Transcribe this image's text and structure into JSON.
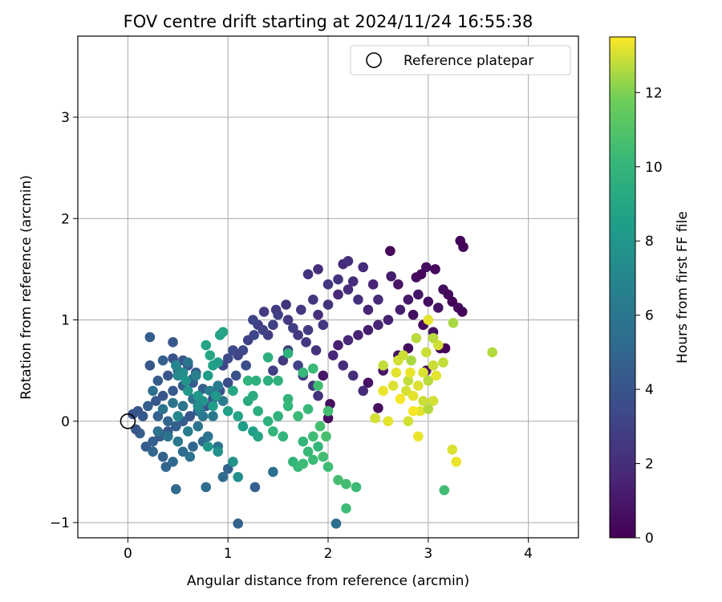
{
  "chart_data": {
    "type": "scatter",
    "title": "FOV centre drift starting at 2024/11/24 16:55:38",
    "xlabel": "Angular distance from reference (arcmin)",
    "ylabel": "Rotation from reference (arcmin)",
    "xlim": [
      -0.5,
      4.5
    ],
    "ylim": [
      -1.15,
      3.8
    ],
    "xticks": [
      0,
      1,
      2,
      3,
      4
    ],
    "yticks": [
      -1,
      0,
      1,
      2,
      3
    ],
    "grid": true,
    "legend": {
      "placement": "top-right",
      "label": "Reference platepar"
    },
    "reference_point": {
      "x": 0,
      "y": 0
    },
    "colorbar": {
      "label": "Hours from first FF file",
      "range": [
        0,
        13.5
      ],
      "ticks": [
        0,
        2,
        4,
        6,
        8,
        10,
        12
      ],
      "colormap": "viridis"
    },
    "points": [
      [
        2.62,
        1.68,
        0.2
      ],
      [
        3.32,
        1.78,
        0.1
      ],
      [
        3.35,
        1.72,
        0.2
      ],
      [
        2.98,
        1.52,
        0.5
      ],
      [
        3.07,
        1.5,
        0.3
      ],
      [
        2.88,
        1.42,
        0.4
      ],
      [
        2.93,
        1.45,
        0.2
      ],
      [
        3.15,
        1.3,
        0.6
      ],
      [
        3.2,
        1.25,
        0.3
      ],
      [
        3.24,
        1.18,
        0.1
      ],
      [
        3.3,
        1.12,
        0.4
      ],
      [
        3.34,
        1.08,
        0.2
      ],
      [
        3.1,
        1.12,
        0.8
      ],
      [
        3.0,
        1.18,
        0.6
      ],
      [
        2.9,
        1.25,
        0.9
      ],
      [
        2.85,
        1.05,
        0.5
      ],
      [
        2.95,
        0.95,
        0.4
      ],
      [
        3.05,
        0.88,
        0.7
      ],
      [
        3.12,
        0.72,
        0.2
      ],
      [
        3.17,
        0.72,
        0.1
      ],
      [
        2.8,
        0.72,
        0.5
      ],
      [
        2.7,
        0.65,
        0.8
      ],
      [
        2.98,
        0.5,
        0.6
      ],
      [
        2.55,
        0.5,
        1.0
      ],
      [
        2.4,
        0.38,
        0.8
      ],
      [
        2.5,
        0.13,
        0.6
      ],
      [
        2.0,
        0.03,
        0.5
      ],
      [
        2.02,
        0.17,
        0.6
      ],
      [
        1.95,
        0.45,
        0.9
      ],
      [
        2.63,
        1.43,
        1.2
      ],
      [
        2.45,
        1.35,
        1.5
      ],
      [
        2.7,
        1.35,
        0.9
      ],
      [
        2.8,
        1.2,
        1.1
      ],
      [
        2.72,
        1.1,
        1.3
      ],
      [
        2.6,
        1.0,
        1.4
      ],
      [
        2.5,
        0.95,
        1.6
      ],
      [
        2.4,
        0.9,
        1.2
      ],
      [
        2.3,
        0.85,
        1.5
      ],
      [
        2.2,
        0.8,
        1.8
      ],
      [
        2.1,
        0.75,
        1.4
      ],
      [
        2.05,
        0.65,
        1.7
      ],
      [
        2.15,
        0.55,
        1.9
      ],
      [
        2.25,
        0.45,
        2.1
      ],
      [
        2.35,
        0.3,
        1.8
      ],
      [
        2.4,
        1.1,
        1.6
      ],
      [
        2.5,
        1.2,
        1.9
      ],
      [
        2.3,
        1.2,
        2.2
      ],
      [
        2.2,
        1.3,
        2.0
      ],
      [
        2.1,
        1.25,
        1.7
      ],
      [
        2.0,
        1.15,
        2.3
      ],
      [
        1.9,
        1.05,
        2.1
      ],
      [
        1.85,
        1.2,
        2.4
      ],
      [
        1.8,
        1.45,
        2.2
      ],
      [
        1.9,
        1.5,
        2.0
      ],
      [
        2.15,
        1.55,
        1.8
      ],
      [
        2.2,
        1.58,
        2.1
      ],
      [
        2.35,
        1.52,
        1.9
      ],
      [
        2.0,
        1.35,
        2.5
      ],
      [
        2.1,
        1.4,
        2.3
      ],
      [
        2.25,
        1.38,
        2.0
      ],
      [
        1.95,
        0.95,
        2.5
      ],
      [
        1.8,
        0.9,
        2.7
      ],
      [
        1.7,
        0.85,
        2.4
      ],
      [
        1.6,
        1.0,
        2.6
      ],
      [
        1.5,
        1.05,
        2.9
      ],
      [
        1.45,
        0.95,
        3.0
      ],
      [
        1.4,
        0.85,
        2.8
      ],
      [
        1.35,
        0.9,
        3.1
      ],
      [
        1.3,
        0.95,
        2.9
      ],
      [
        1.25,
        1.0,
        3.2
      ],
      [
        1.2,
        0.8,
        3.0
      ],
      [
        1.15,
        0.7,
        3.3
      ],
      [
        1.1,
        0.65,
        3.2
      ],
      [
        1.05,
        0.7,
        3.4
      ],
      [
        1.0,
        0.62,
        3.5
      ],
      [
        0.95,
        0.55,
        3.3
      ],
      [
        1.6,
        0.7,
        2.8
      ],
      [
        1.55,
        0.6,
        2.6
      ],
      [
        1.45,
        0.5,
        2.9
      ],
      [
        1.7,
        0.55,
        3.0
      ],
      [
        1.75,
        0.45,
        2.7
      ],
      [
        1.85,
        0.35,
        2.4
      ],
      [
        1.9,
        0.25,
        2.2
      ],
      [
        1.78,
        0.78,
        2.5
      ],
      [
        1.65,
        0.92,
        2.8
      ],
      [
        1.88,
        0.7,
        2.2
      ],
      [
        1.73,
        1.1,
        2.5
      ],
      [
        1.58,
        1.15,
        2.3
      ],
      [
        1.48,
        1.1,
        2.7
      ],
      [
        1.36,
        1.08,
        2.6
      ],
      [
        1.26,
        0.85,
        3.3
      ],
      [
        1.18,
        0.55,
        3.6
      ],
      [
        1.08,
        0.45,
        3.8
      ],
      [
        1.0,
        0.38,
        3.7
      ],
      [
        0.92,
        0.3,
        3.9
      ],
      [
        0.85,
        0.22,
        4.0
      ],
      [
        0.78,
        0.15,
        4.2
      ],
      [
        0.7,
        0.1,
        4.3
      ],
      [
        0.62,
        0.05,
        4.1
      ],
      [
        0.55,
        0.0,
        4.4
      ],
      [
        0.48,
        -0.05,
        4.6
      ],
      [
        0.4,
        -0.1,
        4.3
      ],
      [
        0.32,
        -0.15,
        4.5
      ],
      [
        0.25,
        -0.2,
        4.7
      ],
      [
        0.18,
        -0.25,
        4.4
      ],
      [
        0.12,
        -0.12,
        4.6
      ],
      [
        0.08,
        -0.08,
        4.2
      ],
      [
        0.15,
        0.05,
        4.3
      ],
      [
        0.05,
        0.07,
        4.0
      ],
      [
        0.1,
        0.1,
        4.2
      ],
      [
        0.2,
        0.15,
        4.5
      ],
      [
        0.28,
        0.2,
        4.2
      ],
      [
        0.35,
        0.25,
        4.0
      ],
      [
        0.45,
        0.3,
        4.3
      ],
      [
        0.55,
        0.35,
        4.5
      ],
      [
        0.65,
        0.38,
        4.2
      ],
      [
        0.75,
        0.32,
        4.6
      ],
      [
        0.3,
        0.4,
        4.4
      ],
      [
        0.4,
        0.45,
        4.1
      ],
      [
        0.5,
        0.5,
        4.3
      ],
      [
        0.6,
        0.55,
        4.0
      ],
      [
        0.68,
        0.48,
        4.5
      ],
      [
        0.22,
        0.55,
        4.2
      ],
      [
        0.35,
        0.6,
        4.6
      ],
      [
        0.45,
        0.62,
        3.9
      ],
      [
        0.55,
        0.6,
        4.2
      ],
      [
        0.65,
        0.42,
        4.8
      ],
      [
        0.4,
        0.0,
        4.9
      ],
      [
        0.3,
        0.05,
        4.7
      ],
      [
        0.25,
        -0.3,
        5.0
      ],
      [
        0.35,
        -0.35,
        4.8
      ],
      [
        0.45,
        -0.4,
        5.1
      ],
      [
        0.55,
        -0.3,
        5.3
      ],
      [
        0.65,
        -0.25,
        5.0
      ],
      [
        0.75,
        -0.2,
        5.2
      ],
      [
        0.38,
        -0.45,
        4.9
      ],
      [
        0.48,
        -0.67,
        5.2
      ],
      [
        0.78,
        -0.65,
        5.5
      ],
      [
        0.95,
        -0.55,
        5.3
      ],
      [
        1.0,
        -0.47,
        4.8
      ],
      [
        1.27,
        -0.65,
        4.6
      ],
      [
        1.1,
        -1.01,
        4.7
      ],
      [
        0.22,
        0.83,
        4.5
      ],
      [
        0.45,
        0.78,
        4.2
      ],
      [
        0.6,
        0.58,
        5.8
      ],
      [
        0.65,
        0.22,
        5.6
      ],
      [
        0.7,
        -0.05,
        5.8
      ],
      [
        0.75,
        0.05,
        6.0
      ],
      [
        0.8,
        -0.15,
        5.9
      ],
      [
        0.85,
        0.05,
        6.1
      ],
      [
        0.9,
        -0.25,
        5.7
      ],
      [
        0.95,
        0.2,
        6.2
      ],
      [
        0.55,
        0.15,
        5.9
      ],
      [
        0.45,
        0.18,
        6.0
      ],
      [
        0.35,
        0.12,
        5.8
      ],
      [
        0.5,
        -0.2,
        6.1
      ],
      [
        0.4,
        -0.15,
        5.9
      ],
      [
        0.6,
        -0.1,
        6.3
      ],
      [
        0.72,
        0.1,
        6.4
      ],
      [
        0.82,
        0.3,
        6.5
      ],
      [
        0.9,
        0.35,
        6.3
      ],
      [
        0.3,
        -0.1,
        5.7
      ],
      [
        0.25,
        0.3,
        5.6
      ],
      [
        0.62,
        -0.35,
        5.8
      ],
      [
        0.68,
        0.45,
        6.6
      ],
      [
        0.48,
        0.55,
        7.0
      ],
      [
        0.5,
        0.45,
        7.2
      ],
      [
        0.55,
        0.48,
        7.5
      ],
      [
        0.58,
        0.4,
        7.8
      ],
      [
        0.6,
        0.3,
        8.0
      ],
      [
        0.7,
        0.25,
        8.2
      ],
      [
        0.75,
        0.2,
        7.9
      ],
      [
        0.8,
        0.45,
        8.4
      ],
      [
        0.85,
        0.55,
        8.6
      ],
      [
        0.9,
        0.58,
        8.3
      ],
      [
        0.78,
        0.75,
        8.8
      ],
      [
        0.82,
        0.65,
        9.0
      ],
      [
        0.92,
        0.85,
        8.7
      ],
      [
        0.95,
        0.88,
        8.9
      ],
      [
        0.85,
        0.15,
        8.5
      ],
      [
        0.88,
        0.25,
        8.2
      ],
      [
        1.0,
        0.1,
        8.6
      ],
      [
        1.05,
        0.3,
        9.0
      ],
      [
        1.1,
        0.05,
        8.8
      ],
      [
        1.15,
        -0.05,
        8.4
      ],
      [
        1.25,
        -0.1,
        8.6
      ],
      [
        1.3,
        -0.15,
        8.9
      ],
      [
        1.1,
        -0.55,
        7.5
      ],
      [
        1.05,
        -0.4,
        7.8
      ],
      [
        0.8,
        -0.25,
        8.0
      ],
      [
        0.9,
        -0.3,
        7.6
      ],
      [
        0.7,
        0.15,
        7.4
      ],
      [
        0.5,
        0.05,
        7.1
      ],
      [
        1.2,
        0.2,
        9.2
      ],
      [
        1.25,
        0.25,
        9.4
      ],
      [
        1.28,
        0.4,
        9.6
      ],
      [
        1.2,
        0.4,
        9.8
      ],
      [
        1.3,
        0.1,
        9.5
      ],
      [
        1.4,
        0.0,
        9.7
      ],
      [
        1.45,
        -0.1,
        9.9
      ],
      [
        1.55,
        -0.15,
        10.0
      ],
      [
        1.5,
        0.05,
        9.8
      ],
      [
        1.6,
        0.15,
        10.1
      ],
      [
        1.7,
        0.05,
        10.3
      ],
      [
        1.75,
        -0.2,
        10.0
      ],
      [
        1.8,
        -0.3,
        10.2
      ],
      [
        1.85,
        -0.15,
        10.4
      ],
      [
        1.9,
        -0.25,
        10.1
      ],
      [
        1.95,
        -0.35,
        10.5
      ],
      [
        1.85,
        -0.38,
        10.3
      ],
      [
        1.65,
        -0.4,
        10.0
      ],
      [
        1.7,
        -0.45,
        10.2
      ],
      [
        1.75,
        -0.42,
        10.4
      ],
      [
        1.92,
        -0.05,
        10.6
      ],
      [
        1.98,
        -0.15,
        10.7
      ],
      [
        2.0,
        0.1,
        10.5
      ],
      [
        1.8,
        0.12,
        10.2
      ],
      [
        1.6,
        0.22,
        9.9
      ],
      [
        1.4,
        0.4,
        9.6
      ],
      [
        1.5,
        0.4,
        9.8
      ],
      [
        1.75,
        0.48,
        10.1
      ],
      [
        1.85,
        0.52,
        10.3
      ],
      [
        1.6,
        0.67,
        9.7
      ],
      [
        1.4,
        0.63,
        9.5
      ],
      [
        1.9,
        0.35,
        10.5
      ],
      [
        2.0,
        -0.45,
        10.4
      ],
      [
        2.1,
        -0.58,
        10.6
      ],
      [
        2.18,
        -0.62,
        10.5
      ],
      [
        2.28,
        -0.65,
        10.3
      ],
      [
        2.18,
        -0.86,
        10.4
      ],
      [
        3.16,
        -0.68,
        10.5
      ],
      [
        2.08,
        -1.01,
        5.5
      ],
      [
        1.45,
        -0.5,
        5.6
      ],
      [
        2.47,
        0.03,
        13.0
      ],
      [
        2.6,
        0.0,
        13.2
      ],
      [
        2.55,
        0.3,
        13.3
      ],
      [
        2.65,
        0.35,
        13.1
      ],
      [
        2.72,
        0.22,
        13.4
      ],
      [
        2.78,
        0.3,
        13.0
      ],
      [
        2.85,
        0.25,
        13.2
      ],
      [
        2.8,
        0.4,
        12.8
      ],
      [
        2.82,
        0.48,
        13.3
      ],
      [
        2.9,
        0.35,
        13.1
      ],
      [
        2.95,
        0.2,
        12.9
      ],
      [
        2.92,
        0.1,
        13.2
      ],
      [
        2.85,
        0.1,
        13.4
      ],
      [
        2.8,
        0.0,
        13.0
      ],
      [
        2.9,
        -0.15,
        13.3
      ],
      [
        2.95,
        0.48,
        13.1
      ],
      [
        3.0,
        0.4,
        12.7
      ],
      [
        3.05,
        0.55,
        12.9
      ],
      [
        3.08,
        0.45,
        13.2
      ],
      [
        3.05,
        0.2,
        13.0
      ],
      [
        3.0,
        0.12,
        12.6
      ],
      [
        3.15,
        0.58,
        12.8
      ],
      [
        3.1,
        0.75,
        13.0
      ],
      [
        3.05,
        0.82,
        12.7
      ],
      [
        3.0,
        1.0,
        13.2
      ],
      [
        3.25,
        0.97,
        12.5
      ],
      [
        3.24,
        -0.28,
        13.1
      ],
      [
        3.28,
        -0.4,
        13.3
      ],
      [
        3.64,
        0.68,
        12.6
      ],
      [
        2.83,
        0.6,
        12.5
      ],
      [
        2.7,
        0.6,
        13.0
      ],
      [
        2.75,
        0.65,
        12.9
      ],
      [
        2.55,
        0.55,
        12.8
      ],
      [
        2.68,
        0.48,
        13.2
      ],
      [
        2.88,
        0.82,
        12.7
      ],
      [
        2.98,
        0.68,
        12.9
      ]
    ]
  }
}
